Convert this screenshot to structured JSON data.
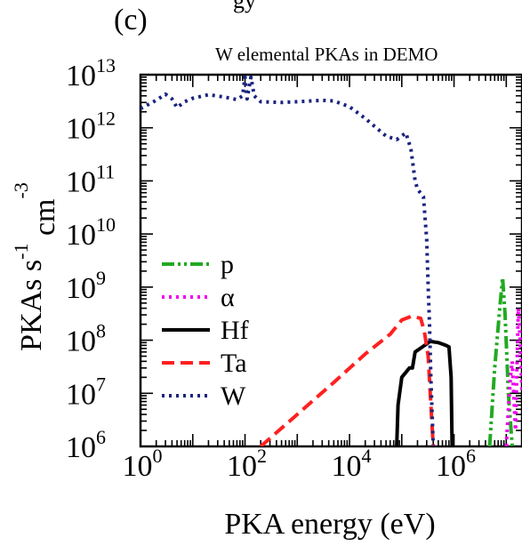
{
  "panel_label": "(c)",
  "top_clipped_text": "gy",
  "chart_data": {
    "type": "line",
    "title": "W elemental PKAs in DEMO",
    "xlabel": "PKA energy (eV)",
    "ylabel": "PKAs s-1 cm-3",
    "xscale": "log",
    "yscale": "log",
    "xlim": [
      1,
      20000000
    ],
    "ylim": [
      1000000,
      10000000000000
    ],
    "grid": false,
    "legend_position": "left-center",
    "x_ticks": [
      {
        "base": "10",
        "exp": "0"
      },
      {
        "base": "10",
        "exp": "2"
      },
      {
        "base": "10",
        "exp": "4"
      },
      {
        "base": "10",
        "exp": "6"
      }
    ],
    "y_ticks": [
      {
        "base": "10",
        "exp": "6"
      },
      {
        "base": "10",
        "exp": "7"
      },
      {
        "base": "10",
        "exp": "8"
      },
      {
        "base": "10",
        "exp": "9"
      },
      {
        "base": "10",
        "exp": "10"
      },
      {
        "base": "10",
        "exp": "11"
      },
      {
        "base": "10",
        "exp": "12"
      },
      {
        "base": "10",
        "exp": "13"
      }
    ],
    "series": [
      {
        "name": "p",
        "color": "#22aa22",
        "dash": "dashdotdot",
        "points": [
          [
            4800000,
            1000000
          ],
          [
            6000000,
            30000000
          ],
          [
            7500000,
            400000000
          ],
          [
            8500000,
            1500000000
          ],
          [
            9500000,
            300000000
          ],
          [
            11000000,
            10000000
          ],
          [
            13000000,
            1000000
          ]
        ]
      },
      {
        "name": "α",
        "color": "#ee00ee",
        "dash": "dot",
        "points": [
          [
            10000000,
            1000000
          ],
          [
            11000000,
            5000000
          ],
          [
            12000000,
            20000000
          ],
          [
            13000000,
            40000000
          ],
          [
            14000000,
            8000000
          ],
          [
            15000000,
            2000000
          ],
          [
            16000000,
            30000000
          ],
          [
            17000000,
            400000000
          ],
          [
            18500000,
            100000000
          ],
          [
            20000000,
            10000000
          ]
        ]
      },
      {
        "name": "Hf",
        "color": "#000000",
        "dash": "solid",
        "points": [
          [
            80000,
            1000000
          ],
          [
            85000,
            6000000
          ],
          [
            100000,
            20000000
          ],
          [
            140000,
            30000000
          ],
          [
            160000,
            30000000
          ],
          [
            180000,
            60000000
          ],
          [
            250000,
            75000000
          ],
          [
            350000,
            95000000
          ],
          [
            500000,
            90000000
          ],
          [
            700000,
            80000000
          ],
          [
            800000,
            75000000
          ],
          [
            880000,
            20000000
          ],
          [
            920000,
            1000000
          ]
        ]
      },
      {
        "name": "Ta",
        "color": "#ff2020",
        "dash": "dash",
        "points": [
          [
            200,
            1000000
          ],
          [
            1000,
            4000000
          ],
          [
            5000,
            16000000
          ],
          [
            20000,
            55000000
          ],
          [
            60000,
            130000000
          ],
          [
            100000,
            240000000
          ],
          [
            150000,
            280000000
          ],
          [
            230000,
            260000000
          ],
          [
            270000,
            150000000
          ],
          [
            320000,
            50000000
          ],
          [
            350000,
            10000000
          ],
          [
            400000,
            1000000
          ]
        ]
      },
      {
        "name": "W",
        "color": "#1a237e",
        "dash": "dot",
        "points": [
          [
            1,
            2300000000000
          ],
          [
            2,
            3300000000000
          ],
          [
            3,
            4300000000000
          ],
          [
            4,
            3500000000000
          ],
          [
            5,
            2400000000000
          ],
          [
            7,
            3100000000000
          ],
          [
            10,
            3600000000000
          ],
          [
            20,
            4200000000000
          ],
          [
            40,
            3800000000000
          ],
          [
            70,
            3400000000000
          ],
          [
            90,
            4000000000000
          ],
          [
            100,
            9000000000000
          ],
          [
            110,
            3500000000000
          ],
          [
            130,
            9000000000000
          ],
          [
            150,
            4000000000000
          ],
          [
            200,
            3100000000000
          ],
          [
            500,
            3000000000000
          ],
          [
            1000,
            3100000000000
          ],
          [
            3000,
            3300000000000
          ],
          [
            5000,
            3200000000000
          ],
          [
            10000,
            2500000000000
          ],
          [
            20000,
            1500000000000
          ],
          [
            50000,
            700000000000
          ],
          [
            80000,
            600000000000
          ],
          [
            120000,
            800000000000
          ],
          [
            150000,
            400000000000
          ],
          [
            180000,
            100000000000
          ],
          [
            200000,
            70000000000
          ],
          [
            260000,
            50000000000
          ],
          [
            300000,
            8000000000
          ],
          [
            320000,
            1000000000
          ],
          [
            340000,
            200000000
          ],
          [
            360000,
            20000000
          ],
          [
            400000,
            1000000
          ]
        ]
      }
    ]
  }
}
